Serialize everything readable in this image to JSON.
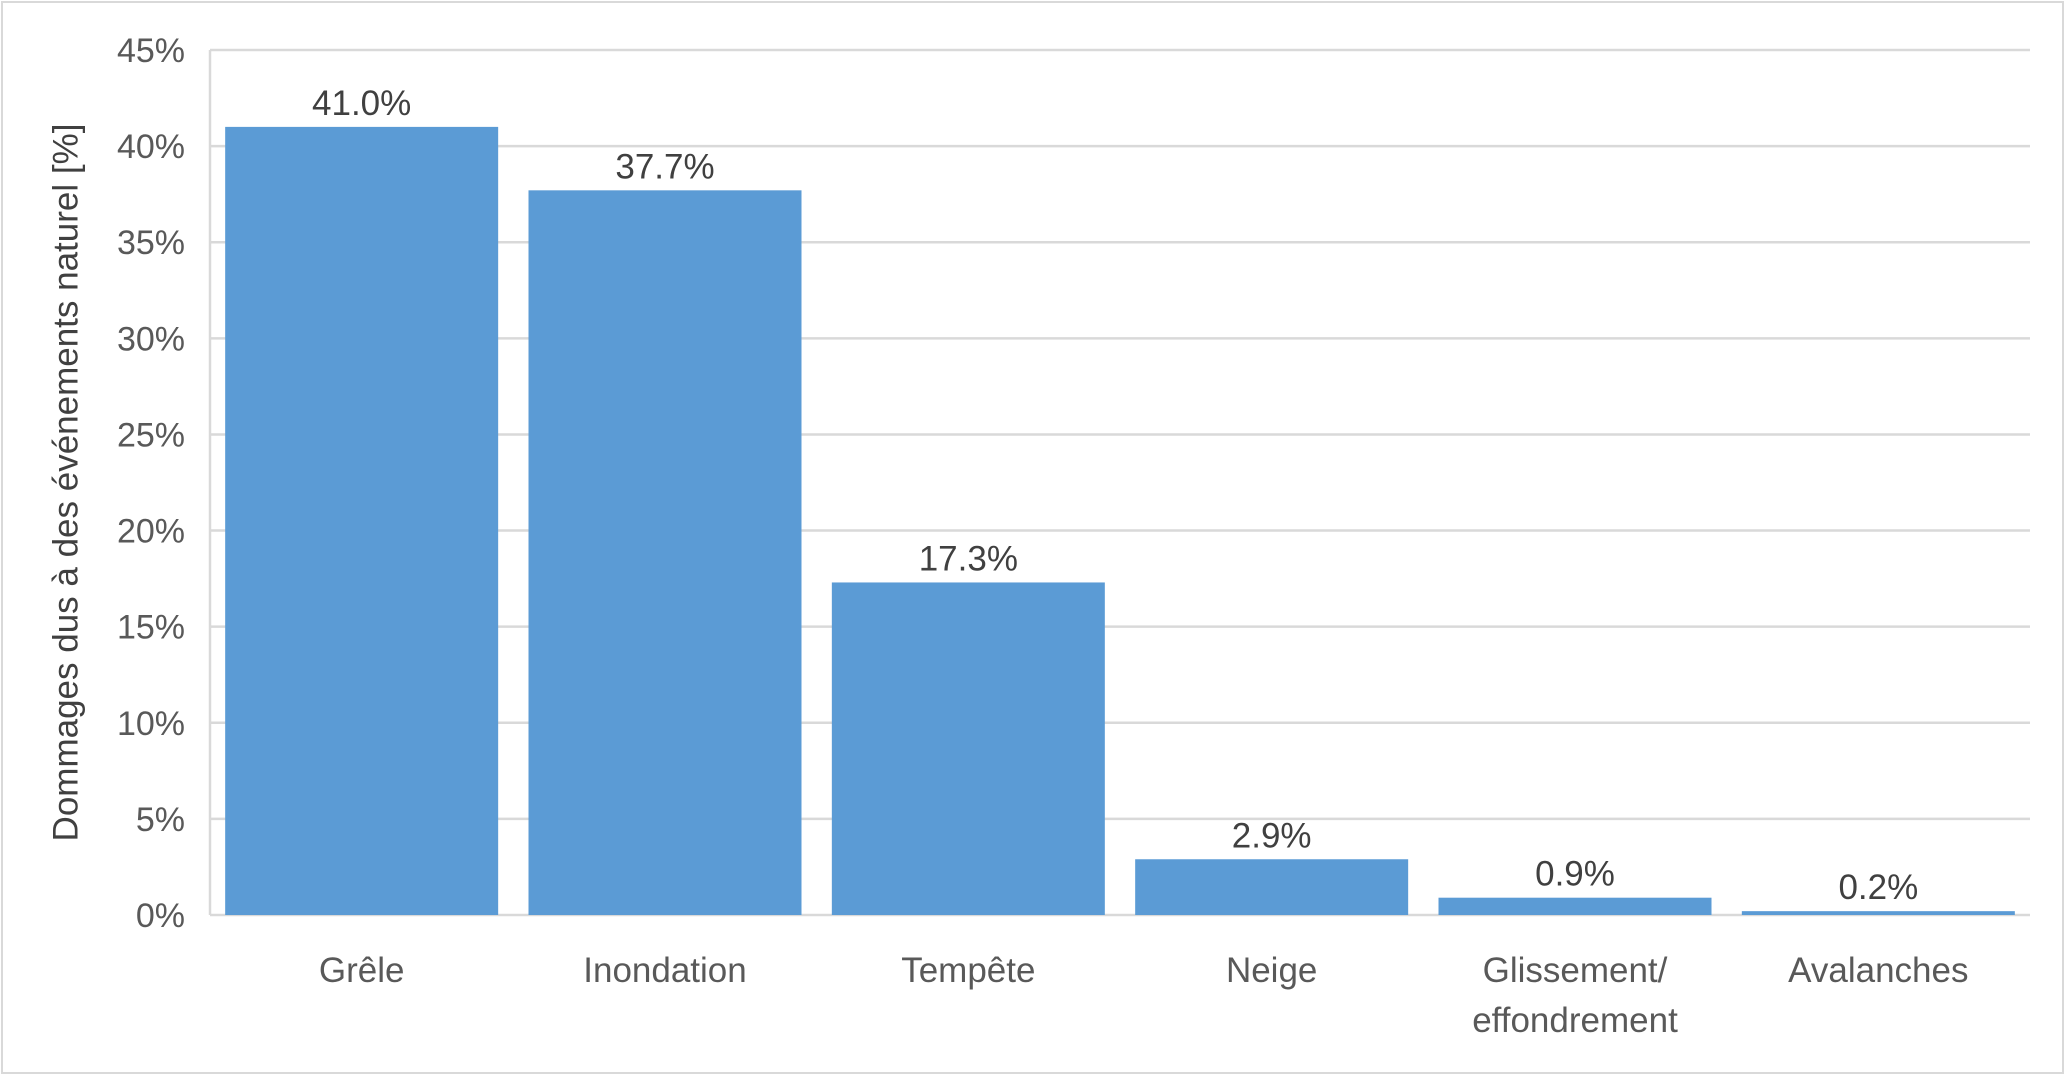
{
  "chart_data": {
    "type": "bar",
    "categories": [
      "Grêle",
      "Inondation",
      "Tempête",
      "Neige",
      "Glissement/ effondrement",
      "Avalanches"
    ],
    "category_lines": [
      [
        "Grêle"
      ],
      [
        "Inondation"
      ],
      [
        "Tempête"
      ],
      [
        "Neige"
      ],
      [
        "Glissement/",
        "effondrement"
      ],
      [
        "Avalanches"
      ]
    ],
    "values": [
      41.0,
      37.7,
      17.3,
      2.9,
      0.9,
      0.2
    ],
    "data_labels": [
      "41.0%",
      "37.7%",
      "17.3%",
      "2.9%",
      "0.9%",
      "0.2%"
    ],
    "ylabel": "Dommages dus à des événements naturel [%]",
    "yticks": [
      0,
      5,
      10,
      15,
      20,
      25,
      30,
      35,
      40,
      45
    ],
    "ytick_labels": [
      "0%",
      "5%",
      "10%",
      "15%",
      "20%",
      "25%",
      "30%",
      "35%",
      "40%",
      "45%"
    ],
    "ylim": [
      0,
      45
    ],
    "grid": true,
    "legend": "none",
    "bar_color": "#5b9bd5",
    "grid_color": "#d9d9d9"
  }
}
